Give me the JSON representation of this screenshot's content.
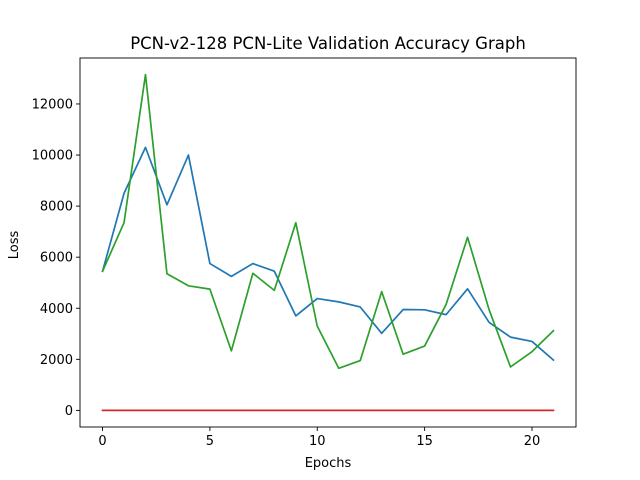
{
  "chart_data": {
    "type": "line",
    "title": "PCN-v2-128 PCN-Lite Validation Accuracy Graph",
    "xlabel": "Epochs",
    "ylabel": "Loss",
    "xlim": [
      -1.05,
      22.05
    ],
    "ylim": [
      -650,
      13800
    ],
    "xticks": [
      0,
      5,
      10,
      15,
      20
    ],
    "yticks": [
      0,
      2000,
      4000,
      6000,
      8000,
      10000,
      12000
    ],
    "grid": false,
    "legend": "none",
    "x": [
      0,
      1,
      2,
      3,
      4,
      5,
      6,
      7,
      8,
      9,
      10,
      11,
      12,
      13,
      14,
      15,
      16,
      17,
      18,
      19,
      20,
      21
    ],
    "series": [
      {
        "color": "#1f77b4",
        "values": [
          5450,
          8500,
          10300,
          8050,
          10000,
          5750,
          5250,
          5750,
          5450,
          3700,
          4380,
          4250,
          4050,
          3020,
          3950,
          3940,
          3750,
          4760,
          3450,
          2870,
          2700,
          1970
        ]
      },
      {
        "color": "#2ca02c",
        "values": [
          5450,
          7350,
          13150,
          5350,
          4880,
          4750,
          2330,
          5370,
          4700,
          7350,
          3300,
          1650,
          1950,
          4650,
          2200,
          2520,
          4150,
          6780,
          3950,
          1700,
          2300,
          3120
        ]
      },
      {
        "color": "#d62728",
        "values": [
          0,
          0,
          0,
          0,
          0,
          0,
          0,
          0,
          0,
          0,
          0,
          0,
          0,
          0,
          0,
          0,
          0,
          0,
          0,
          0,
          0,
          0
        ]
      }
    ]
  }
}
